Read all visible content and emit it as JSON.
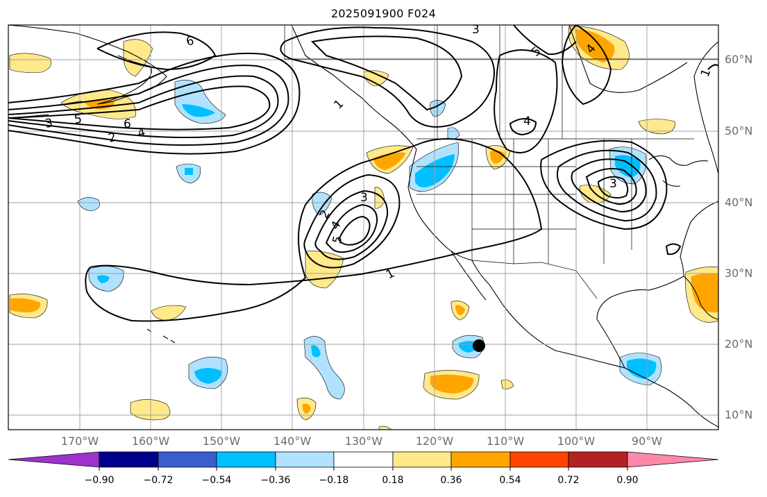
{
  "title": "2025091900 F024",
  "lat_labels": [
    "60°N",
    "50°N",
    "40°N",
    "30°N",
    "20°N",
    "10°N"
  ],
  "lon_labels": [
    "170°W",
    "160°W",
    "150°W",
    "140°W",
    "130°W",
    "120°W",
    "110°W",
    "100°W",
    "90°W"
  ],
  "colorbar": {
    "ticks": [
      "−0.90",
      "−0.72",
      "−0.54",
      "−0.36",
      "−0.18",
      "0.18",
      "0.36",
      "0.54",
      "0.72",
      "0.90"
    ],
    "colors": [
      "#9b33cc",
      "#00008b",
      "#3a5fcd",
      "#00bfff",
      "#b0e2ff",
      "#ffffff",
      "#ffe98a",
      "#ffa500",
      "#ff4500",
      "#b22222",
      "#ff88aa"
    ]
  },
  "contour_labels": [
    "1",
    "2",
    "3",
    "4",
    "5",
    "6",
    "1",
    "2",
    "3",
    "4",
    "5",
    "6",
    "3",
    "4",
    "5",
    "1",
    "4",
    "3"
  ],
  "marker": "storm-position-dot"
}
